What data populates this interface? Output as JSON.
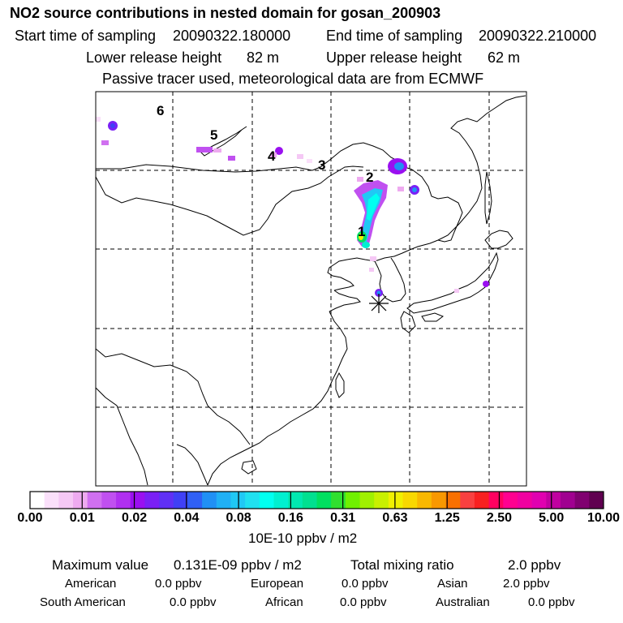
{
  "header": {
    "title": "NO2 source contributions in nested domain for gosan_200903",
    "start_label": "Start time of sampling",
    "start_value": "20090322.180000",
    "end_label": "End time of sampling",
    "end_value": "20090322.210000",
    "lower_label": "Lower release height",
    "lower_value": "82 m",
    "upper_label": "Upper release height",
    "upper_value": "62 m",
    "tracer_note": "Passive tracer used, meteorological data are from ECMWF"
  },
  "map": {
    "trajectory_markers": [
      "1",
      "2",
      "3",
      "4",
      "5",
      "6"
    ],
    "receptor_symbol": "∗"
  },
  "colorbar": {
    "tick_labels": [
      "0.00",
      "0.01",
      "0.02",
      "0.04",
      "0.08",
      "0.16",
      "0.31",
      "0.63",
      "1.25",
      "2.50",
      "5.00",
      "10.00"
    ],
    "units": "10E-10 ppbv / m2",
    "colors": [
      "#ffffff",
      "#fae0fa",
      "#f5c8f5",
      "#eeaaf0",
      "#d070f0",
      "#c050f0",
      "#b030f0",
      "#9a10f0",
      "#7a20f5",
      "#6030f5",
      "#4040f5",
      "#3060f5",
      "#2090f5",
      "#20b0f5",
      "#20c8f5",
      "#20e0f0",
      "#00fff0",
      "#00f0d0",
      "#00e8b0",
      "#00e090",
      "#00e060",
      "#30e030",
      "#70f000",
      "#a0f000",
      "#c8f000",
      "#f0f000",
      "#f8d800",
      "#f8b800",
      "#f89800",
      "#f87000",
      "#f84040",
      "#f82020",
      "#ff0060",
      "#ff0090",
      "#f000a0",
      "#e000b0",
      "#c000a0",
      "#a00090",
      "#800070",
      "#600050"
    ]
  },
  "stats": {
    "max_label": "Maximum value",
    "max_value": "0.131E-09 ppbv / m2",
    "total_label": "Total mixing ratio",
    "total_value": "2.0 ppbv",
    "regions": [
      {
        "name": "American",
        "value": "0.0 ppbv"
      },
      {
        "name": "European",
        "value": "0.0 ppbv"
      },
      {
        "name": "Asian",
        "value": "2.0 ppbv"
      },
      {
        "name": "South American",
        "value": "0.0 ppbv"
      },
      {
        "name": "African",
        "value": "0.0 ppbv"
      },
      {
        "name": "Australian",
        "value": "0.0 ppbv"
      }
    ]
  }
}
